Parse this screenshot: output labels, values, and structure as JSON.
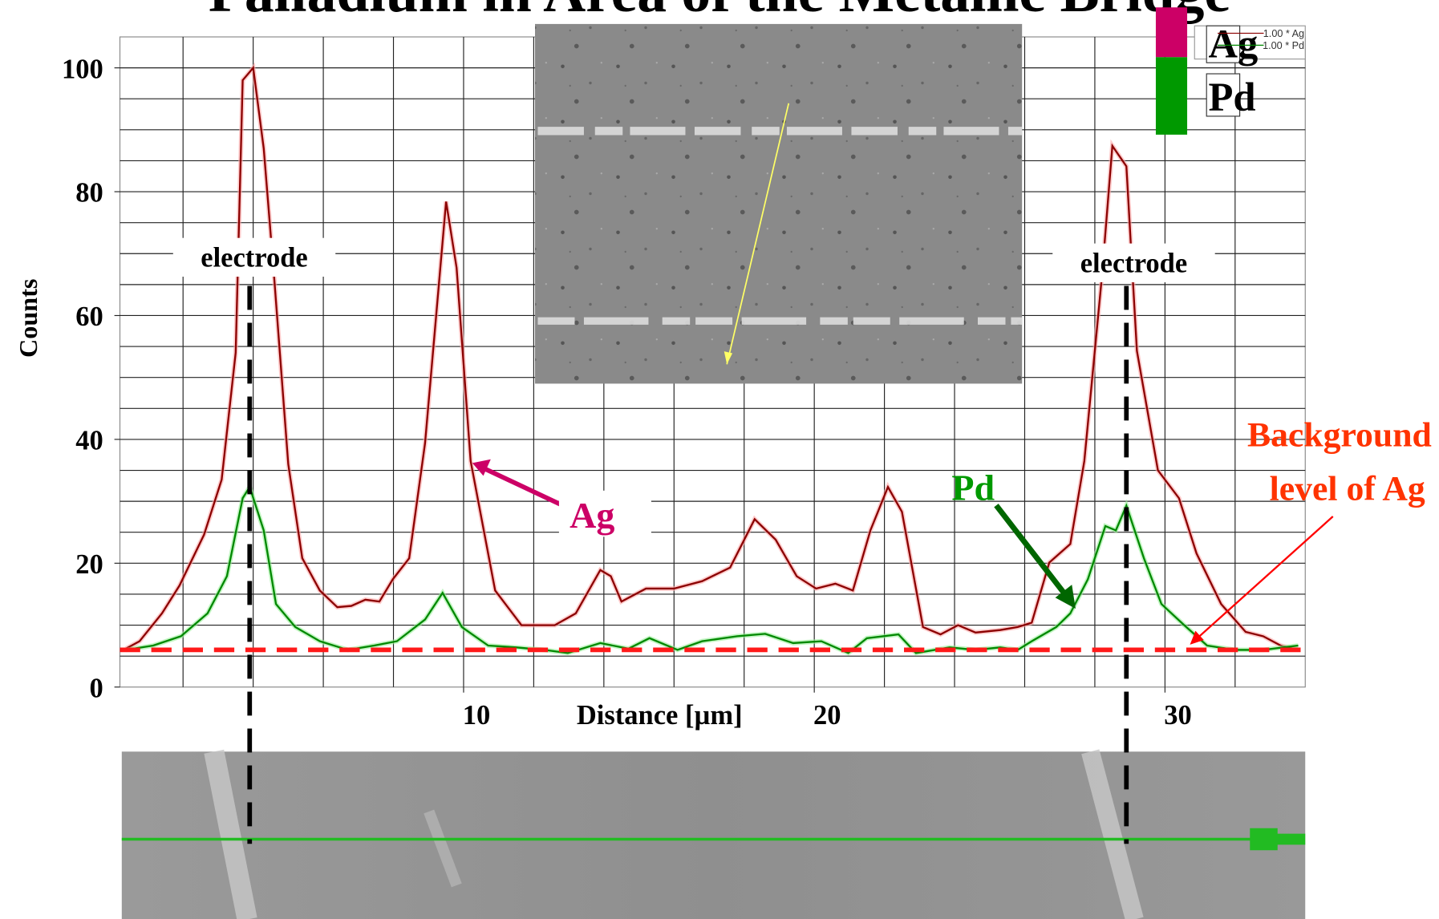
{
  "chart_data": {
    "type": "line",
    "title": "Palladium in Area of the Metallic Bridge",
    "x_label": "Distance [µm]",
    "y_label": "Counts",
    "xlim": [
      0.2,
      34
    ],
    "ylim": [
      0,
      105
    ],
    "xticks": [
      10,
      20,
      30
    ],
    "yticks": [
      0,
      20,
      40,
      60,
      80,
      100
    ],
    "x_grid": [
      2,
      4,
      6,
      8,
      10,
      12,
      14,
      16,
      18,
      20,
      22,
      24,
      26,
      28,
      30,
      32
    ],
    "y_grid": [
      5,
      10,
      15,
      20,
      25,
      30,
      35,
      40,
      45,
      50,
      55,
      60,
      65,
      70,
      75,
      80,
      85,
      90,
      95,
      100
    ],
    "grid": true,
    "series": [
      {
        "name": "Ag",
        "color": "#8b0000",
        "legend_color": "#cc0066",
        "x": [
          0.37,
          0.76,
          1.4,
          1.9,
          2.6,
          3.1,
          3.5,
          3.7,
          4.0,
          4.3,
          4.6,
          5.0,
          5.4,
          5.9,
          6.4,
          6.8,
          7.2,
          7.6,
          7.98,
          8.45,
          8.9,
          9.5,
          9.8,
          10.2,
          10.9,
          11.65,
          12.6,
          13.2,
          13.9,
          14.2,
          14.5,
          15.2,
          16.0,
          16.8,
          17.6,
          18.3,
          18.9,
          19.5,
          20.05,
          20.6,
          21.1,
          21.6,
          22.1,
          22.5,
          23.1,
          23.6,
          24.1,
          24.6,
          25.3,
          25.8,
          26.2,
          26.7,
          27.3,
          27.7,
          28.2,
          28.5,
          28.9,
          29.2,
          29.8,
          30.4,
          30.9,
          31.6,
          32.3,
          32.8,
          33.3,
          33.8
        ],
        "values": [
          6.2,
          7.4,
          11.9,
          16.4,
          24.6,
          33.5,
          54,
          98,
          100,
          87,
          66,
          36,
          20.8,
          15.6,
          12.9,
          13.1,
          14.1,
          13.8,
          17.4,
          20.8,
          39.4,
          78.4,
          67.7,
          36.5,
          15.6,
          10,
          10,
          11.9,
          18.9,
          17.9,
          13.8,
          15.9,
          15.9,
          17.1,
          19.3,
          27.1,
          23.8,
          17.9,
          15.9,
          16.7,
          15.6,
          25.3,
          32.3,
          28.3,
          9.7,
          8.5,
          10,
          8.8,
          9.2,
          9.7,
          10.4,
          20.1,
          23.1,
          36.5,
          66.2,
          87.4,
          84.1,
          54.3,
          35,
          30.5,
          21.6,
          13.4,
          8.9,
          8.2,
          6.7,
          6
        ]
      },
      {
        "name": "Pd",
        "color": "#008800",
        "legend_color": "#009900",
        "x": [
          0.37,
          1.15,
          1.94,
          2.7,
          3.25,
          3.7,
          3.9,
          4.3,
          4.65,
          5.2,
          5.9,
          6.7,
          7.45,
          8.1,
          8.9,
          9.4,
          9.95,
          10.7,
          11.5,
          12.3,
          12.97,
          13.9,
          14.7,
          15.3,
          16.1,
          16.8,
          17.8,
          18.6,
          19.4,
          20.2,
          20.97,
          21.5,
          22.4,
          22.9,
          23.86,
          24.6,
          25.3,
          25.8,
          26.2,
          26.9,
          27.3,
          27.8,
          28.3,
          28.6,
          28.9,
          29.4,
          29.9,
          30.55,
          31.2,
          32.0,
          32.8,
          33.8
        ],
        "values": [
          6,
          6.7,
          8.2,
          11.9,
          17.9,
          30.5,
          32.3,
          25.3,
          13.4,
          9.7,
          7.4,
          6,
          6.7,
          7.4,
          10.9,
          15.2,
          9.7,
          6.7,
          6.4,
          6,
          5.5,
          7.1,
          6.2,
          7.9,
          6,
          7.4,
          8.2,
          8.6,
          7.1,
          7.4,
          5.5,
          7.9,
          8.5,
          5.5,
          6.4,
          6,
          6.4,
          6,
          7.4,
          9.7,
          11.9,
          17.4,
          26,
          25.3,
          29.3,
          20.8,
          13.4,
          10,
          6.7,
          6,
          6,
          6.7
        ]
      }
    ],
    "background_level": 6,
    "electrode_positions": [
      3.9,
      28.9
    ],
    "electrode_label": "electrode",
    "ag_annotation": "Ag",
    "pd_annotation": "Pd",
    "background_annotation": [
      "Background",
      "level of Ag"
    ],
    "inset_legend": [
      "1.00 * Ag",
      "1.00 * Pd"
    ]
  }
}
